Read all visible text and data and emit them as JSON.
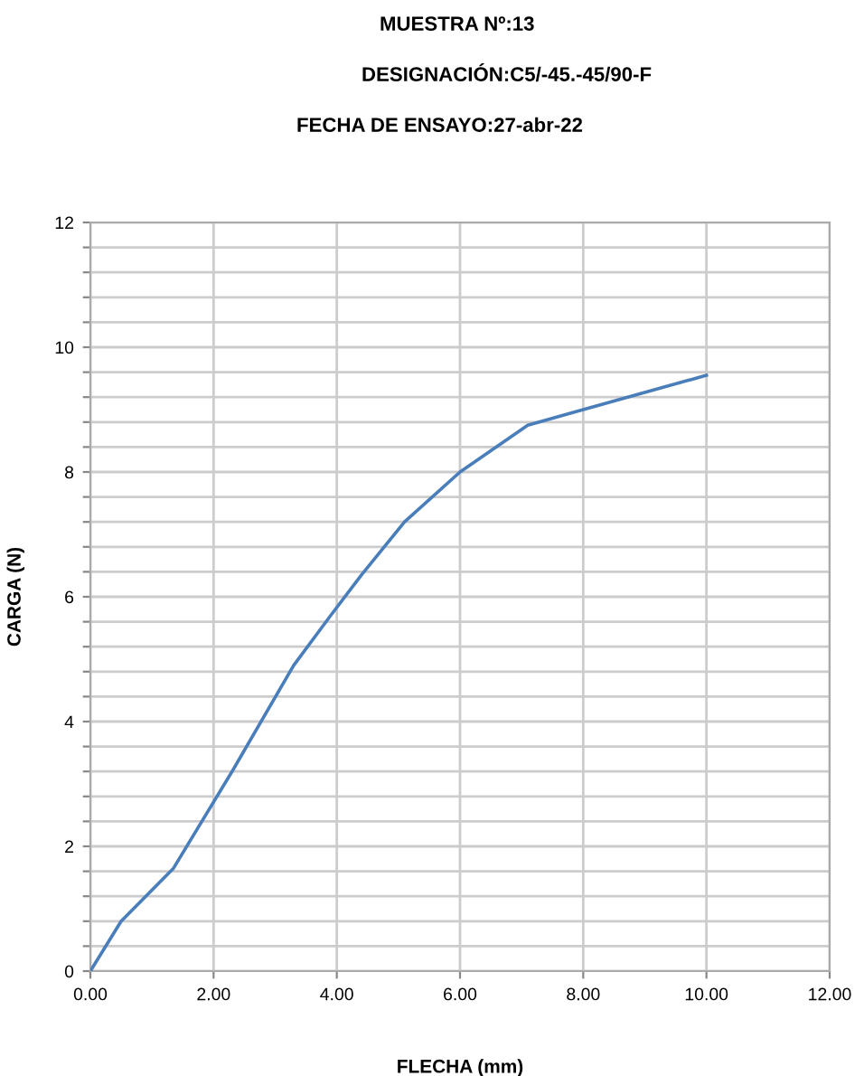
{
  "chart_data": {
    "type": "line",
    "title": "MUESTRA Nº:13",
    "subtitle": "DESIGNACIÓN:C5/-45.-45/90-F",
    "annotations": [
      "FECHA DE ENSAYO:27-abr-22"
    ],
    "xlabel": "FLECHA (mm)",
    "ylabel": "CARGA (N)",
    "series": [
      {
        "color": "#4a7ebb",
        "x": [
          0,
          0.5,
          1.35,
          2.3,
          3.3,
          3.9,
          4.4,
          5.1,
          6.0,
          7.1,
          8.0,
          10.0
        ],
        "values": [
          0,
          0.8,
          1.65,
          3.2,
          4.9,
          5.7,
          6.35,
          7.2,
          8.0,
          8.75,
          9.0,
          9.55
        ]
      }
    ],
    "xlim": [
      0,
      12
    ],
    "ylim": [
      0,
      12
    ],
    "xticks": [
      {
        "value": 0,
        "label": "0.00"
      },
      {
        "value": 2,
        "label": "2.00"
      },
      {
        "value": 4,
        "label": "4.00"
      },
      {
        "value": 6,
        "label": "6.00"
      },
      {
        "value": 8,
        "label": "8.00"
      },
      {
        "value": 10,
        "label": "10.00"
      },
      {
        "value": 12,
        "label": "12.00"
      }
    ],
    "yticks": [
      0,
      {
        "value": 0.4,
        "label": null
      },
      {
        "value": 0.8,
        "label": null
      },
      {
        "value": 1.2,
        "label": null
      },
      {
        "value": 1.6,
        "label": null
      },
      2,
      {
        "value": 2.4,
        "label": null
      },
      {
        "value": 2.8,
        "label": null
      },
      {
        "value": 3.2,
        "label": null
      },
      {
        "value": 3.6,
        "label": null
      },
      4,
      {
        "value": 4.4,
        "label": null
      },
      {
        "value": 4.8,
        "label": null
      },
      {
        "value": 5.2,
        "label": null
      },
      {
        "value": 5.6,
        "label": null
      },
      6,
      {
        "value": 6.4,
        "label": null
      },
      {
        "value": 6.8,
        "label": null
      },
      {
        "value": 7.2,
        "label": null
      },
      {
        "value": 7.6,
        "label": null
      },
      8,
      {
        "value": 8.4,
        "label": null
      },
      {
        "value": 8.8,
        "label": null
      },
      {
        "value": 9.2,
        "label": null
      },
      {
        "value": 9.6,
        "label": null
      },
      10,
      {
        "value": 10.4,
        "label": null
      },
      {
        "value": 10.8,
        "label": null
      },
      {
        "value": 11.2,
        "label": null
      },
      {
        "value": 11.6,
        "label": null
      },
      12
    ],
    "grid": true,
    "legend": false,
    "marker": "none",
    "line_style": "solid"
  }
}
